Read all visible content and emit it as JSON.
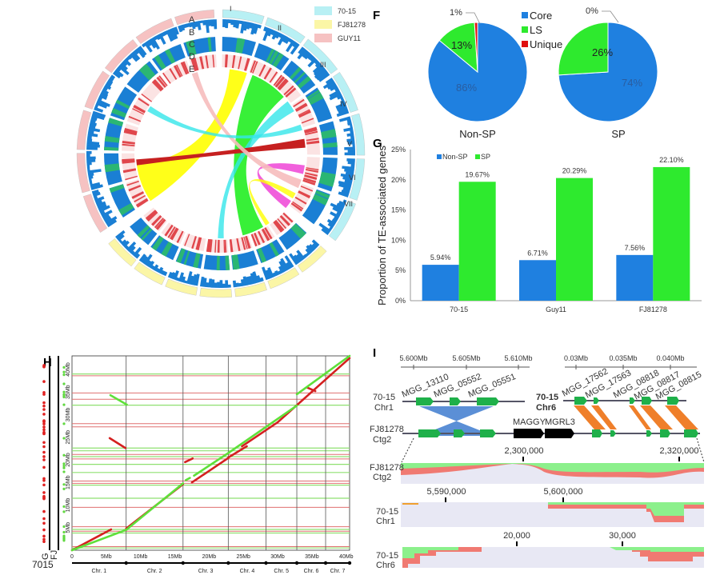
{
  "panels": {
    "F": "F",
    "G": "G",
    "H": "H",
    "I": "I"
  },
  "circos": {
    "legend": [
      {
        "label": "70-15",
        "color": "#b8f0f4"
      },
      {
        "label": "FJ81278",
        "color": "#fbf6a6"
      },
      {
        "label": "GUY11",
        "color": "#f6c2c2"
      }
    ],
    "track_labels": [
      "A",
      "B",
      "C",
      "D",
      "E"
    ],
    "chromosomes": [
      "I",
      "II",
      "III",
      "IV",
      "V",
      "VI",
      "VII"
    ],
    "colors": {
      "density": "#1a7fd4",
      "gene_band": "#2bb673",
      "te": "#e0474c",
      "chords": [
        "#ffff00",
        "#22ee22",
        "#35e6ea",
        "#c62020",
        "#f04fd8",
        "#f6bcbc"
      ]
    }
  },
  "chart_data": [
    {
      "type": "pie",
      "title": "Non-SP",
      "legend": [
        "Core",
        "LS",
        "Unique"
      ],
      "colors": [
        "#1f80e0",
        "#2eea2e",
        "#e01010"
      ],
      "values": [
        86,
        13,
        1
      ],
      "labels": [
        "86%",
        "13%",
        "1%"
      ]
    },
    {
      "type": "pie",
      "title": "SP",
      "legend": [
        "Core",
        "LS",
        "Unique"
      ],
      "colors": [
        "#1f80e0",
        "#2eea2e",
        "#e01010"
      ],
      "values": [
        74,
        26,
        0
      ],
      "labels": [
        "74%",
        "26%",
        "0%"
      ]
    },
    {
      "type": "bar",
      "ylabel": "Proportion of TE-associated genes",
      "categories": [
        "70-15",
        "Guy11",
        "FJ81278"
      ],
      "series": [
        {
          "name": "Non-SP",
          "color": "#1f80e0",
          "values": [
            5.94,
            6.71,
            7.56
          ],
          "labels": [
            "5.94%",
            "6.71%",
            "7.56%"
          ]
        },
        {
          "name": "SP",
          "color": "#2eea2e",
          "values": [
            19.67,
            20.29,
            22.1
          ],
          "labels": [
            "19.67%",
            "20.29%",
            "22.10%"
          ]
        }
      ],
      "ylim": [
        0,
        25
      ],
      "yticks": [
        "0%",
        "5%",
        "10%",
        "15%",
        "20%",
        "25%"
      ],
      "legend_position": "top-left"
    },
    {
      "type": "scatter",
      "xlabel": "7015",
      "ylabel_left": [
        "G",
        "FJ"
      ],
      "xticks": [
        "0",
        "5Mb",
        "10Mb",
        "15Mb",
        "20Mb",
        "25Mb",
        "30Mb",
        "35Mb",
        "40Mb"
      ],
      "yticks": [
        "5Mb",
        "10Mb",
        "15Mb",
        "20Mb",
        "25Mb",
        "30Mb",
        "35Mb",
        "40Mb"
      ],
      "xlim": [
        0,
        40.5
      ],
      "ylim": [
        0,
        43
      ],
      "chromosomes": [
        "Chr. 1",
        "Chr. 2",
        "Chr. 3",
        "Chr. 4",
        "Chr. 5",
        "Chr. 6",
        "Chr. 7"
      ],
      "chromosome_boundaries_mb": [
        7.9,
        16.2,
        22.8,
        28.3,
        32.8,
        37.0
      ],
      "series": [
        {
          "name": "G",
          "color": "#d42020",
          "segments_mb": [
            [
              0,
              0,
              5.7,
              4.6
            ],
            [
              7.9,
              4.8,
              16.2,
              14.6
            ],
            [
              17.5,
              15,
              22.8,
              20.4
            ],
            [
              24.8,
              23,
              30,
              28.3
            ],
            [
              30,
              28.3,
              40.5,
              42.5
            ],
            [
              5.5,
              24.8,
              7.8,
              22.6
            ],
            [
              16.5,
              19.5,
              17.6,
              20.3
            ],
            [
              22.8,
              20.5,
              25.5,
              23
            ],
            [
              34.3,
              36,
              35.5,
              35.2
            ]
          ]
        },
        {
          "name": "FJ",
          "color": "#5ee03a",
          "segments_mb": [
            [
              0,
              0,
              7.9,
              4.5
            ],
            [
              7.9,
              4.5,
              16.2,
              14.8
            ],
            [
              17.8,
              16.5,
              22.8,
              21.5
            ],
            [
              22.8,
              21.5,
              32.8,
              32
            ],
            [
              32.8,
              34.5,
              40.5,
              43
            ],
            [
              5.6,
              34.3,
              8,
              32.2
            ],
            [
              16.6,
              15.5,
              17.2,
              16
            ]
          ]
        }
      ],
      "hlines_red_mb": [
        0.8,
        4.2,
        5.2,
        9.5,
        14.8,
        15.3,
        20.2,
        21.2,
        27.3,
        28,
        33.4,
        34.8,
        38.6
      ],
      "hlines_green_mb": [
        0.5,
        3.8,
        4.6,
        11.5,
        14.4,
        17.2,
        19,
        20.7,
        22,
        22.6,
        32.1,
        39
      ]
    }
  ],
  "synteny": {
    "scale_left": [
      "5.600Mb",
      "5.605Mb",
      "5.610Mb"
    ],
    "scale_right": [
      "0.03Mb",
      "0.035Mb",
      "0.040Mb"
    ],
    "chr1_label": [
      "70-15",
      "Chr1"
    ],
    "chr6_label": [
      "70-15",
      "Chr6"
    ],
    "ctg2_label": [
      "FJ81278",
      "Ctg2"
    ],
    "genes_left": [
      "MGG_13110",
      "MGG_05552",
      "MGG_05551"
    ],
    "genes_right": [
      "MGG_17562",
      "MGG_17563",
      "MGG_08818",
      "MGG_08817",
      "MGG_08815"
    ],
    "te_labels": [
      "MAGGY",
      "MGRL3"
    ],
    "coverage": {
      "ctg2": {
        "label": [
          "FJ81278",
          "Ctg2"
        ],
        "ticks": [
          "2,300,000",
          "2,320,000"
        ]
      },
      "chr1": {
        "label": [
          "70-15",
          "Chr1"
        ],
        "ticks": [
          "5,590,000",
          "5,600,000"
        ]
      },
      "chr6": {
        "label": [
          "70-15",
          "Chr6"
        ],
        "ticks": [
          "20,000",
          "30,000"
        ]
      }
    },
    "colors": {
      "gene": "#1fb04a",
      "te": "#000000",
      "inversion": "#5b8fd6",
      "syntenic": "#ef7f2a",
      "cov_green": "#8cf08c",
      "cov_red": "#f07a72",
      "cov_bg": "#e8e8f4"
    }
  }
}
